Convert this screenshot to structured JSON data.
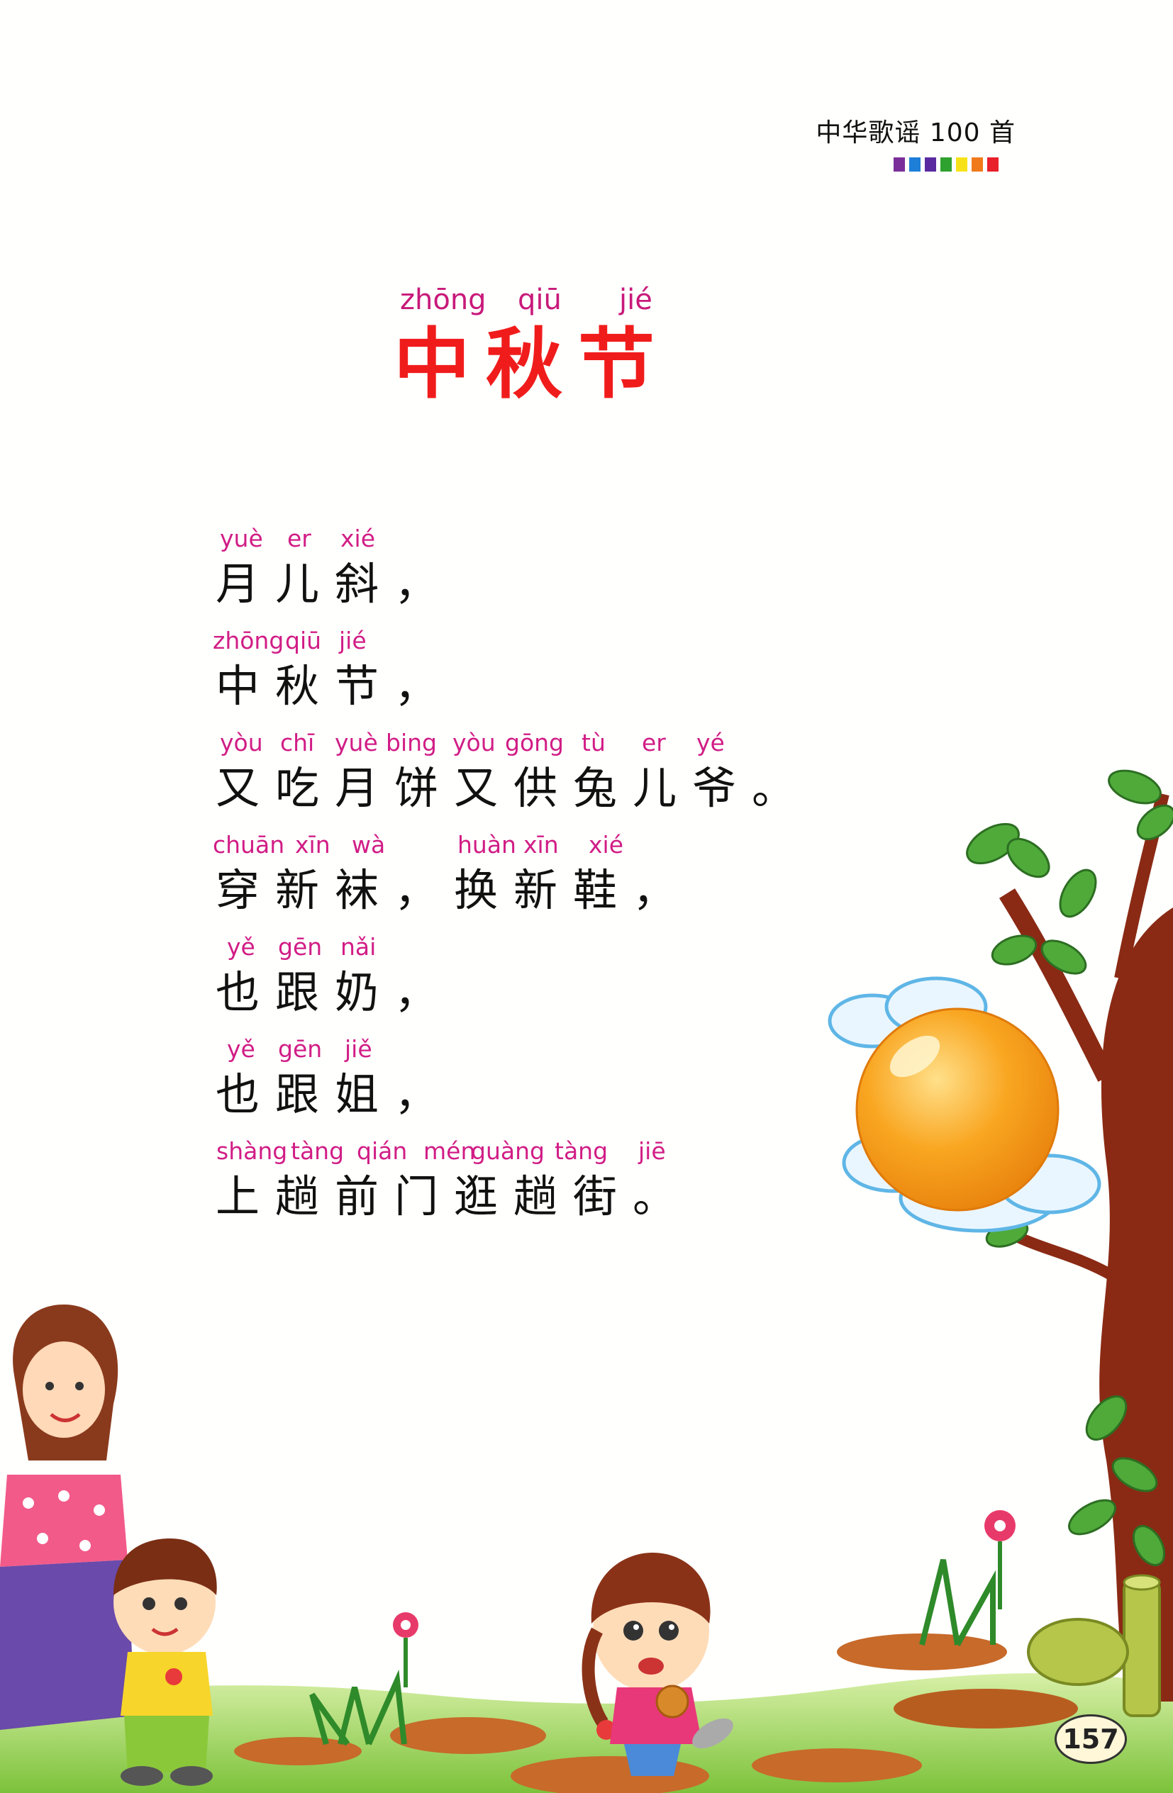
{
  "header": {
    "series_title": "中华歌谣 100 首",
    "bar_colors": [
      "#7a2e9a",
      "#1e7fd8",
      "#5a2aa0",
      "#2fa12f",
      "#f7e21a",
      "#f07a1a",
      "#e8202a"
    ]
  },
  "title": {
    "pinyin": [
      "zhōng",
      "qiū",
      "jié"
    ],
    "text": "中秋节",
    "color": "#f01c1c"
  },
  "poem": [
    {
      "pinyin": [
        "yuè",
        "er",
        "xié"
      ],
      "text": "月儿斜，"
    },
    {
      "pinyin": [
        "zhōng",
        "qiū",
        "jié"
      ],
      "text": "中秋节，"
    },
    {
      "pinyin": [
        "yòu",
        "chī",
        "yuè",
        "bing",
        "yòu",
        "gōng",
        "tù",
        "er",
        "yé"
      ],
      "text": "又吃月饼又供兔儿爷。"
    },
    {
      "pinyin": [
        "chuān",
        "xīn",
        "wà",
        "huàn",
        "xīn",
        "xié"
      ],
      "text": "穿新袜，换新鞋，"
    },
    {
      "pinyin": [
        "yě",
        "gēn",
        "nǎi"
      ],
      "text": "也跟奶，"
    },
    {
      "pinyin": [
        "yě",
        "gēn",
        "jiě"
      ],
      "text": "也跟姐，"
    },
    {
      "pinyin": [
        "shàng",
        "tàng",
        "qián",
        "mén",
        "guàng",
        "tàng",
        "jiē"
      ],
      "text": "上趟前门逛趟街。"
    }
  ],
  "page_number": "157",
  "colors": {
    "pinyin": "#d11d86",
    "moon": "#f7a020"
  }
}
